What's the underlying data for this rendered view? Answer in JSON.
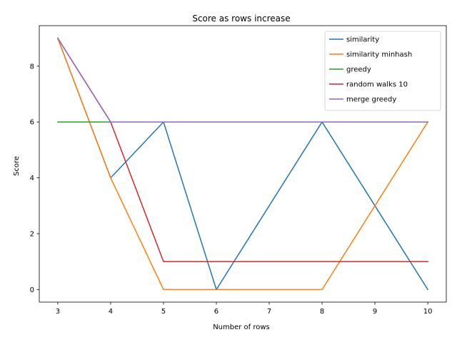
{
  "chart_data": {
    "type": "line",
    "title": "Score as rows increase",
    "xlabel": "Number of rows",
    "ylabel": "Score",
    "x": [
      3,
      4,
      5,
      6,
      7,
      8,
      9,
      10
    ],
    "xticks": [
      3,
      4,
      5,
      6,
      7,
      8,
      9,
      10
    ],
    "yticks": [
      0,
      2,
      4,
      6,
      8
    ],
    "xlim": [
      2.65,
      10.35
    ],
    "ylim": [
      -0.45,
      9.45
    ],
    "grid": false,
    "legend_position": "top-right",
    "series": [
      {
        "name": "similarity",
        "color": "#1f77b4",
        "values": [
          9,
          4,
          6,
          0,
          3,
          6,
          3,
          0
        ]
      },
      {
        "name": "similarity minhash",
        "color": "#ff7f0e",
        "values": [
          9,
          4,
          0,
          0,
          0,
          0,
          3,
          6
        ]
      },
      {
        "name": "greedy",
        "color": "#2ca02c",
        "values": [
          6,
          6,
          6,
          6,
          6,
          6,
          6,
          6
        ]
      },
      {
        "name": "random walks 10",
        "color": "#d62728",
        "values": [
          9,
          6,
          1,
          1,
          1,
          1,
          1,
          1
        ]
      },
      {
        "name": "merge greedy",
        "color": "#9467bd",
        "values": [
          9,
          6,
          6,
          6,
          6,
          6,
          6,
          6
        ]
      }
    ]
  }
}
